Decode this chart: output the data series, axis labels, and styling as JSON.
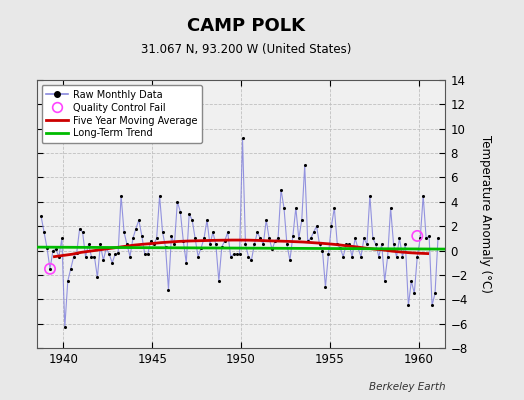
{
  "title": "CAMP POLK",
  "subtitle": "31.067 N, 93.200 W (United States)",
  "ylabel": "Temperature Anomaly (°C)",
  "credit": "Berkeley Earth",
  "ylim": [
    -8,
    14
  ],
  "yticks": [
    -8,
    -6,
    -4,
    -2,
    0,
    2,
    4,
    6,
    8,
    10,
    12,
    14
  ],
  "xlim": [
    1938.5,
    1961.5
  ],
  "xticks": [
    1940,
    1945,
    1950,
    1955,
    1960
  ],
  "fig_bg_color": "#e8e8e8",
  "plot_bg_color": "#f0f0f0",
  "raw_line_color": "#8888dd",
  "raw_marker_color": "#000000",
  "moving_avg_color": "#cc0000",
  "trend_color": "#00bb00",
  "qc_fail_color": "#ff44ff",
  "raw_data_x": [
    1938.75,
    1938.917,
    1939.083,
    1939.25,
    1939.417,
    1939.583,
    1939.75,
    1939.917,
    1940.083,
    1940.25,
    1940.417,
    1940.583,
    1940.75,
    1940.917,
    1941.083,
    1941.25,
    1941.417,
    1941.583,
    1941.75,
    1941.917,
    1942.083,
    1942.25,
    1942.417,
    1942.583,
    1942.75,
    1942.917,
    1943.083,
    1943.25,
    1943.417,
    1943.583,
    1943.75,
    1943.917,
    1944.083,
    1944.25,
    1944.417,
    1944.583,
    1944.75,
    1944.917,
    1945.083,
    1945.25,
    1945.417,
    1945.583,
    1945.75,
    1945.917,
    1946.083,
    1946.25,
    1946.417,
    1946.583,
    1946.75,
    1946.917,
    1947.083,
    1947.25,
    1947.417,
    1947.583,
    1947.75,
    1947.917,
    1948.083,
    1948.25,
    1948.417,
    1948.583,
    1948.75,
    1948.917,
    1949.083,
    1949.25,
    1949.417,
    1949.583,
    1949.75,
    1949.917,
    1950.083,
    1950.25,
    1950.417,
    1950.583,
    1950.75,
    1950.917,
    1951.083,
    1951.25,
    1951.417,
    1951.583,
    1951.75,
    1951.917,
    1952.083,
    1952.25,
    1952.417,
    1952.583,
    1952.75,
    1952.917,
    1953.083,
    1953.25,
    1953.417,
    1953.583,
    1953.75,
    1953.917,
    1954.083,
    1954.25,
    1954.417,
    1954.583,
    1954.75,
    1954.917,
    1955.083,
    1955.25,
    1955.417,
    1955.583,
    1955.75,
    1955.917,
    1956.083,
    1956.25,
    1956.417,
    1956.583,
    1956.75,
    1956.917,
    1957.083,
    1957.25,
    1957.417,
    1957.583,
    1957.75,
    1957.917,
    1958.083,
    1958.25,
    1958.417,
    1958.583,
    1958.75,
    1958.917,
    1959.083,
    1959.25,
    1959.417,
    1959.583,
    1959.75,
    1959.917,
    1960.083,
    1960.25,
    1960.417,
    1960.583,
    1960.75,
    1960.917,
    1961.083
  ],
  "raw_data_y": [
    2.8,
    1.5,
    0.2,
    -1.5,
    0.0,
    0.1,
    -0.5,
    1.0,
    -6.3,
    -2.5,
    -1.5,
    -0.5,
    -0.2,
    1.8,
    1.5,
    -0.5,
    0.5,
    -0.5,
    -0.5,
    -2.2,
    0.5,
    -0.8,
    0.2,
    -0.3,
    -1.0,
    -0.3,
    -0.2,
    4.5,
    1.5,
    0.5,
    -0.5,
    1.0,
    1.8,
    2.5,
    1.2,
    -0.3,
    -0.3,
    0.8,
    0.5,
    1.0,
    4.5,
    1.5,
    0.3,
    -3.2,
    1.2,
    0.5,
    4.0,
    3.2,
    0.8,
    -1.0,
    3.0,
    2.5,
    1.0,
    -0.5,
    0.2,
    1.0,
    2.5,
    0.5,
    1.5,
    0.5,
    -2.5,
    0.3,
    0.8,
    1.5,
    -0.5,
    -0.3,
    -0.3,
    -0.3,
    9.2,
    0.5,
    -0.5,
    -0.8,
    0.5,
    1.5,
    1.0,
    0.5,
    2.5,
    1.0,
    0.1,
    0.8,
    1.0,
    5.0,
    3.5,
    0.5,
    -0.8,
    1.2,
    3.5,
    1.0,
    2.5,
    7.0,
    0.8,
    1.0,
    1.5,
    2.0,
    0.5,
    0.0,
    -3.0,
    -0.3,
    2.0,
    3.5,
    0.5,
    0.2,
    -0.5,
    0.5,
    0.5,
    -0.5,
    1.0,
    0.2,
    -0.5,
    1.0,
    0.5,
    4.5,
    1.0,
    0.5,
    -0.5,
    0.5,
    -2.5,
    -0.5,
    3.5,
    0.5,
    -0.5,
    1.0,
    -0.5,
    0.5,
    -4.5,
    -2.5,
    -3.5,
    -0.5,
    1.0,
    4.5,
    1.0,
    1.2,
    -4.5,
    -3.5,
    1.0
  ],
  "qc_fail_points": [
    [
      1939.25,
      -1.5
    ],
    [
      1959.917,
      1.2
    ]
  ],
  "moving_avg_x": [
    1939.5,
    1940.0,
    1940.5,
    1941.0,
    1941.5,
    1942.0,
    1942.5,
    1943.0,
    1943.5,
    1944.0,
    1944.5,
    1945.0,
    1945.5,
    1946.0,
    1946.5,
    1947.0,
    1947.5,
    1948.0,
    1948.5,
    1949.0,
    1949.5,
    1950.0,
    1950.5,
    1951.0,
    1951.5,
    1952.0,
    1952.5,
    1953.0,
    1953.5,
    1954.0,
    1954.5,
    1955.0,
    1955.5,
    1956.0,
    1956.5,
    1957.0,
    1957.5,
    1958.0,
    1958.5,
    1959.0,
    1959.5,
    1960.0,
    1960.5
  ],
  "moving_avg_y": [
    -0.5,
    -0.4,
    -0.3,
    -0.15,
    -0.05,
    0.05,
    0.15,
    0.25,
    0.35,
    0.45,
    0.52,
    0.58,
    0.65,
    0.7,
    0.75,
    0.78,
    0.8,
    0.82,
    0.84,
    0.85,
    0.86,
    0.86,
    0.85,
    0.83,
    0.8,
    0.78,
    0.76,
    0.73,
    0.7,
    0.65,
    0.6,
    0.54,
    0.47,
    0.38,
    0.3,
    0.2,
    0.12,
    0.05,
    -0.05,
    -0.12,
    -0.18,
    -0.22,
    -0.25
  ],
  "trend_x": [
    1938.5,
    1961.5
  ],
  "trend_y": [
    0.28,
    0.12
  ]
}
